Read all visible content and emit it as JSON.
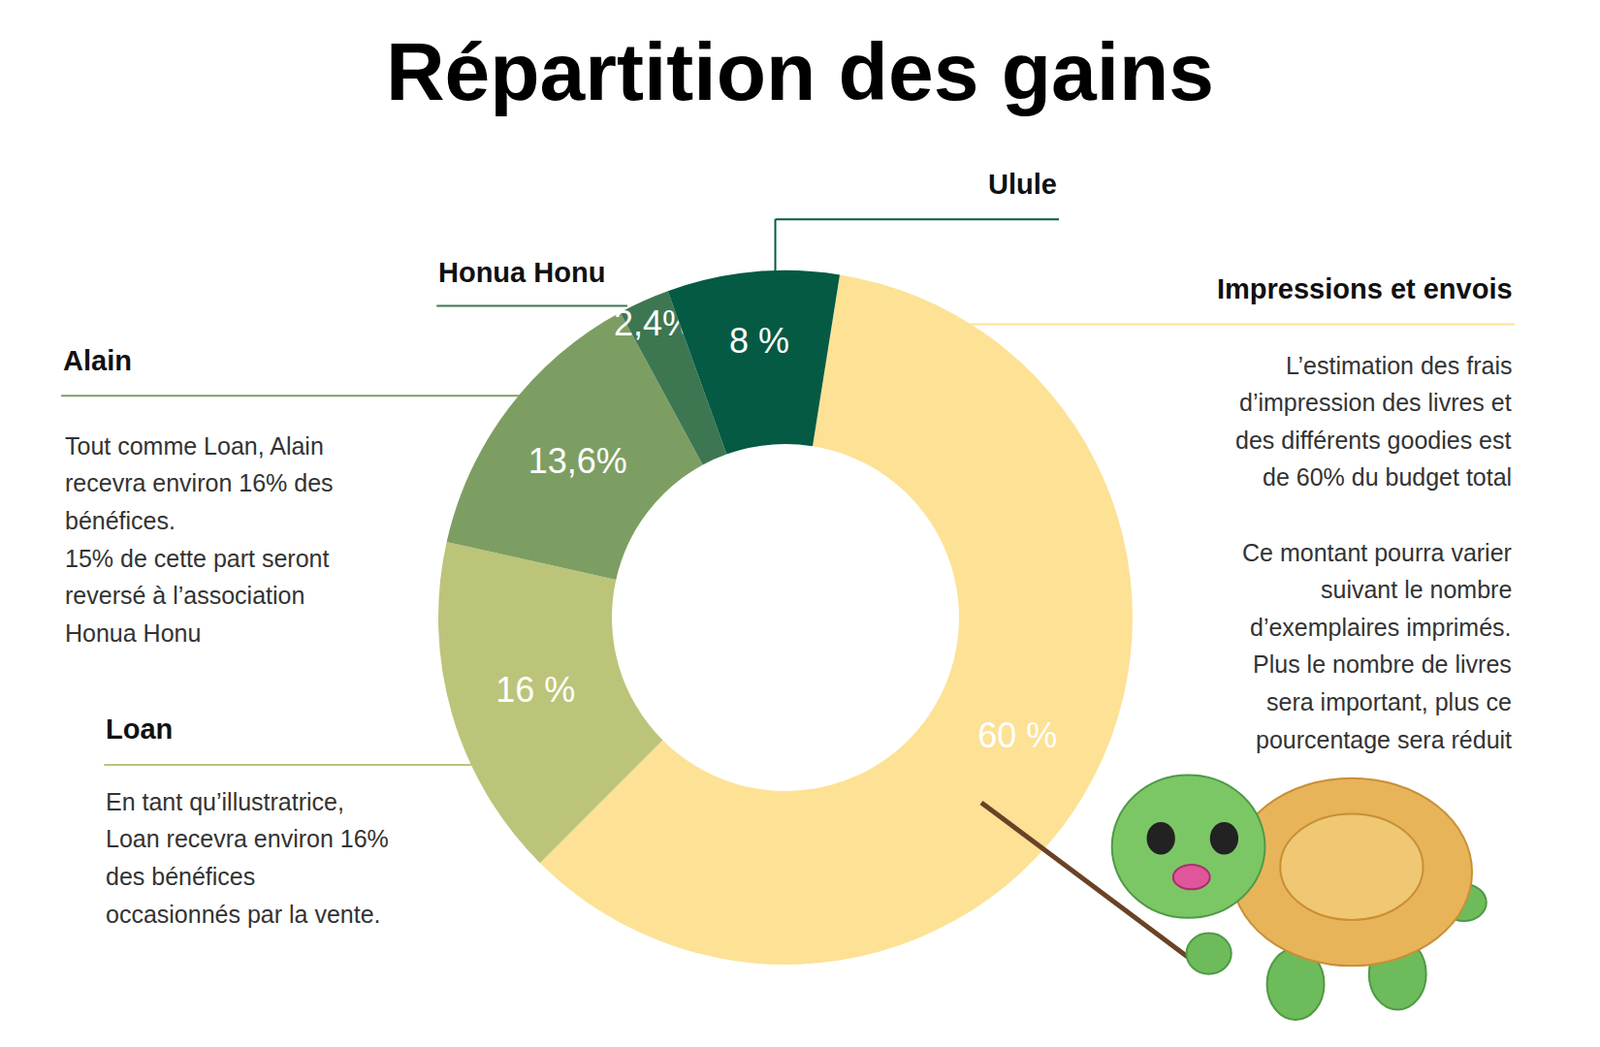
{
  "chart_data": {
    "type": "pie",
    "title": "Répartition des gains",
    "categories": [
      "Impressions et envois",
      "Loan",
      "Alain",
      "Honua Honu",
      "Ulule"
    ],
    "values": [
      60,
      16,
      13.6,
      2.4,
      8
    ],
    "value_labels": [
      "60 %",
      "16 %",
      "13,6%",
      "2,4%",
      "8 %"
    ],
    "colors": [
      "#fde195",
      "#bcc47a",
      "#7d9e62",
      "#3d7752",
      "#045a43"
    ],
    "data_labels": true,
    "annotations": [
      {
        "category": "Impressions et envois",
        "text": [
          [
            "L’estimation des frais",
            "d’impression des livres et",
            "des différents goodies est",
            "de 60% du budget total"
          ],
          [
            "Ce montant pourra varier",
            "suivant le nombre",
            "d’exemplaires imprimés.",
            "Plus le nombre de livres",
            "sera important, plus ce",
            "pourcentage sera réduit"
          ]
        ]
      },
      {
        "category": "Loan",
        "text": [
          [
            "En tant qu’illustratrice,",
            "Loan recevra environ 16%",
            "des bénéfices",
            "occasionnés par la vente."
          ]
        ]
      },
      {
        "category": "Alain",
        "text": [
          [
            "Tout comme Loan, Alain",
            "recevra environ 16% des",
            "bénéfices.",
            "15% de cette part seront",
            "reversé à l’association",
            "Honua Honu"
          ]
        ]
      }
    ]
  }
}
